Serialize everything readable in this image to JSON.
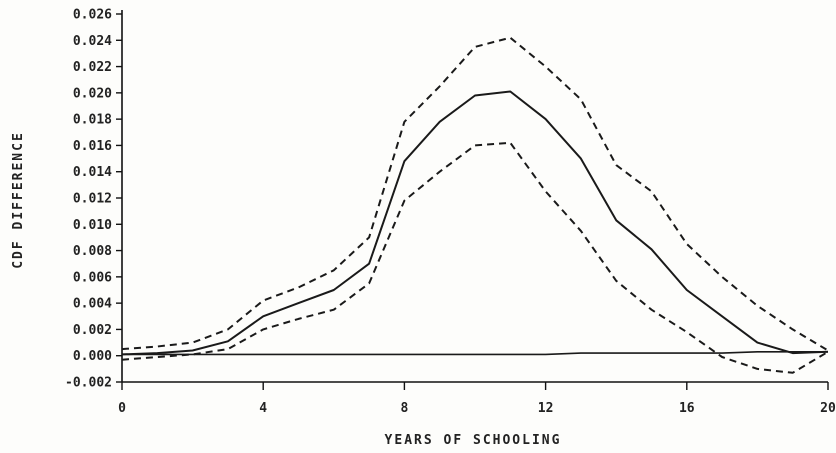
{
  "chart_data": {
    "type": "line",
    "title": "",
    "xlabel": "YEARS OF SCHOOLING",
    "ylabel": "CDF DIFFERENCE",
    "xlim": [
      0,
      20
    ],
    "ylim": [
      -0.002,
      0.026
    ],
    "grid": false,
    "x_ticks": [
      0,
      4,
      8,
      12,
      16,
      20
    ],
    "x_tick_labels": [
      "0",
      "4",
      "8",
      "12",
      "16",
      "20"
    ],
    "y_ticks": [
      -0.002,
      0.0,
      0.002,
      0.004,
      0.006,
      0.008,
      0.01,
      0.012,
      0.014,
      0.016,
      0.018,
      0.02,
      0.022,
      0.024,
      0.026
    ],
    "y_tick_labels": [
      "-0.002",
      "0.000",
      "0.002",
      "0.004",
      "0.006",
      "0.008",
      "0.010",
      "0.012",
      "0.014",
      "0.016",
      "0.018",
      "0.020",
      "0.022",
      "0.024",
      "0.026"
    ],
    "x": [
      0,
      1,
      2,
      3,
      4,
      5,
      6,
      7,
      8,
      9,
      10,
      11,
      12,
      13,
      14,
      15,
      16,
      17,
      18,
      19,
      20
    ],
    "series": [
      {
        "style": "solid",
        "values": [
          0.0001,
          0.0002,
          0.0004,
          0.0011,
          0.003,
          0.004,
          0.005,
          0.007,
          0.0148,
          0.0178,
          0.0198,
          0.0201,
          0.018,
          0.015,
          0.0103,
          0.0081,
          0.005,
          0.003,
          0.001,
          0.0002,
          0.0003
        ]
      },
      {
        "style": "dashed",
        "values": [
          0.0005,
          0.0007,
          0.001,
          0.002,
          0.0042,
          0.0052,
          0.0065,
          0.009,
          0.0178,
          0.0205,
          0.0235,
          0.0242,
          0.022,
          0.0195,
          0.0145,
          0.0125,
          0.0085,
          0.006,
          0.0038,
          0.002,
          0.0004
        ]
      },
      {
        "style": "dashed",
        "values": [
          -0.0003,
          -0.0001,
          0.0001,
          0.0005,
          0.002,
          0.0028,
          0.0035,
          0.0055,
          0.0118,
          0.014,
          0.016,
          0.0162,
          0.0125,
          0.0095,
          0.0057,
          0.0035,
          0.0018,
          -0.0001,
          -0.001,
          -0.0013,
          0.0003
        ]
      },
      {
        "style": "solid",
        "values": [
          0.0001,
          0.0001,
          0.0001,
          0.0001,
          0.0001,
          0.0001,
          0.0001,
          0.0001,
          0.0001,
          0.0001,
          0.0001,
          0.0001,
          0.0001,
          0.0002,
          0.0002,
          0.0002,
          0.0002,
          0.0002,
          0.0003,
          0.0003,
          0.0003
        ]
      }
    ]
  }
}
